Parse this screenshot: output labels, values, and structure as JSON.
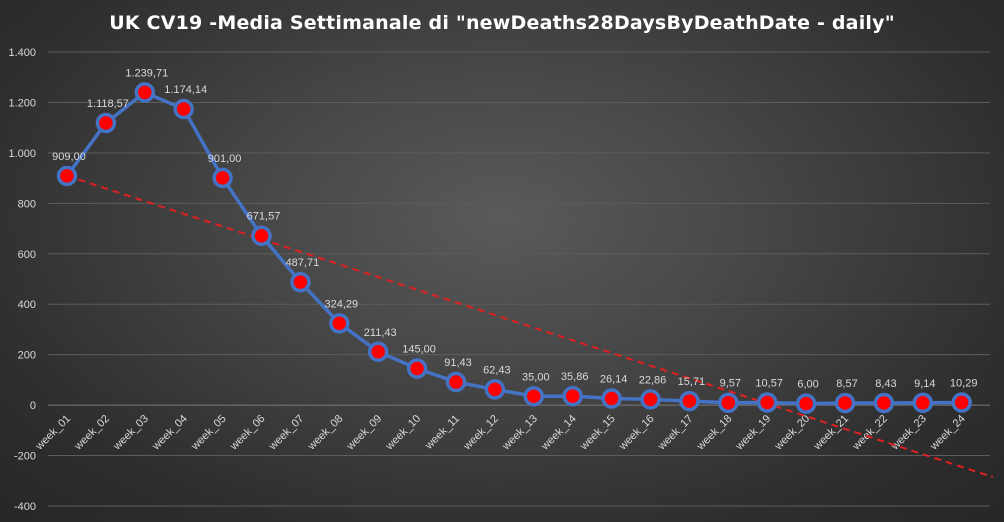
{
  "chart_data": {
    "type": "line",
    "title": "UK  CV19  -Media Settimanale di \"newDeaths28DaysByDeathDate - daily\"",
    "xlabel": "",
    "ylabel": "",
    "ylim": [
      -400,
      1400
    ],
    "yticks": [
      -400,
      -200,
      0,
      200,
      400,
      600,
      800,
      1000,
      1200,
      1400
    ],
    "ytick_labels": [
      "-400",
      "-200",
      "0",
      "200",
      "400",
      "600",
      "800",
      "1.000",
      "1.200",
      "1.400"
    ],
    "grid": true,
    "legend": "none",
    "categories": [
      "week_01",
      "week_02",
      "week_03",
      "week_04",
      "week_05",
      "week_06",
      "week_07",
      "week_08",
      "week_09",
      "week_10",
      "week_11",
      "week_12",
      "week_13",
      "week_14",
      "week_15",
      "week_16",
      "week_17",
      "week_18",
      "week_19",
      "week_20",
      "week_21",
      "week_22",
      "week_23",
      "week_24"
    ],
    "series": [
      {
        "values": [
          909.0,
          1118.57,
          1239.71,
          1174.14,
          901.0,
          671.57,
          487.71,
          324.29,
          211.43,
          145.0,
          91.43,
          62.43,
          35.0,
          35.86,
          26.14,
          22.86,
          15.71,
          9.57,
          10.57,
          6.0,
          8.57,
          8.43,
          9.14,
          10.29
        ],
        "labels": [
          "909,00",
          "1.118,57",
          "1.239,71",
          "1.174,14",
          "901,00",
          "671,57",
          "487,71",
          "324,29",
          "211,43",
          "145,00",
          "91,43",
          "62,43",
          "35,00",
          "35,86",
          "26,14",
          "22,86",
          "15,71",
          "9,57",
          "10,57",
          "6,00",
          "8,57",
          "8,43",
          "9,14",
          "10,29"
        ],
        "line_color": "#4472c4",
        "marker_color": "#ff0000"
      }
    ],
    "trendline": {
      "type": "linear",
      "style": "dashed",
      "color": "#e02020",
      "start": [
        1,
        909
      ],
      "end": [
        24.8,
        -285
      ]
    }
  }
}
